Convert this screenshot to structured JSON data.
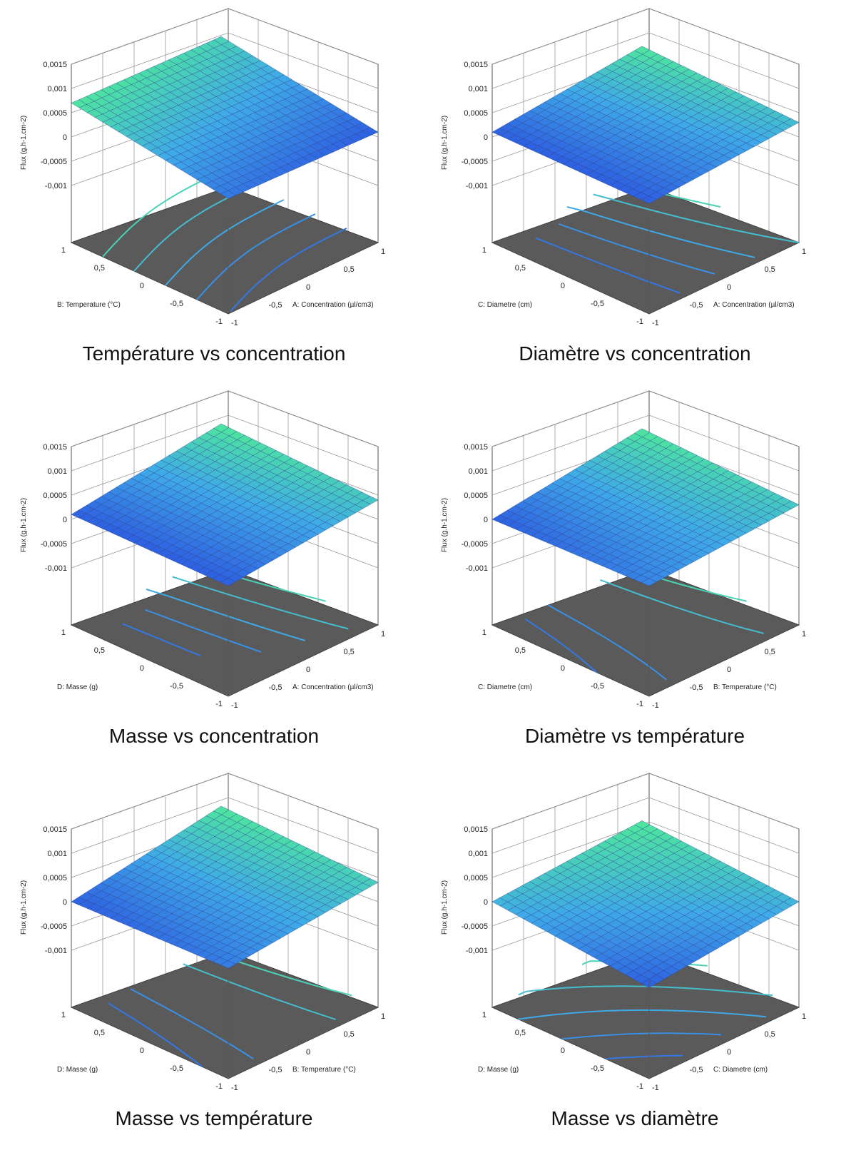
{
  "figure": {
    "z_axis_label": "Flux (g.h-1.cm-2)",
    "z_ticks": [
      "0,0015",
      "0,001",
      "0,0005",
      "0",
      "-0,0005",
      "-0,001"
    ],
    "z_tick_values": [
      0.0015,
      0.001,
      0.0005,
      0,
      -0.0005,
      -0.001
    ],
    "xy_ticks": [
      "-1",
      "-0,5",
      "0",
      "0,5",
      "1"
    ],
    "colors": {
      "floor": "#5a5a5a",
      "surface_low": "#2e5fe0",
      "surface_mid": "#3fa9e8",
      "surface_high": "#4ee69c"
    }
  },
  "panels": [
    {
      "caption": "Température vs concentration",
      "right_axis_label": "A: Concentration (µl/cm3)",
      "left_axis_label": "B: Temperature (°C)",
      "left_ticks": [
        "1",
        "0,5",
        "0",
        "-0,5",
        "-1"
      ],
      "right_ticks": [
        "-1",
        "-0,5",
        "0",
        "0,5",
        "1"
      ]
    },
    {
      "caption": "Diamètre vs concentration",
      "right_axis_label": "A: Concentration (µl/cm3)",
      "left_axis_label": "C: Diametre (cm)",
      "left_ticks": [
        "1",
        "0,5",
        "0",
        "-0,5",
        "-1"
      ],
      "right_ticks": [
        "-1",
        "-0,5",
        "0",
        "0,5",
        "1"
      ]
    },
    {
      "caption": "Masse vs concentration",
      "right_axis_label": "A: Concentration (µl/cm3)",
      "left_axis_label": "D: Masse (g)",
      "left_ticks": [
        "1",
        "0,5",
        "0",
        "-0,5",
        "-1"
      ],
      "right_ticks": [
        "-1",
        "-0,5",
        "0",
        "0,5",
        "1"
      ]
    },
    {
      "caption": "Diamètre vs température",
      "right_axis_label": "B: Temperature (°C)",
      "left_axis_label": "C: Diametre (cm)",
      "left_ticks": [
        "1",
        "0,5",
        "0",
        "-0,5",
        "-1"
      ],
      "right_ticks": [
        "-1",
        "-0,5",
        "0",
        "0,5",
        "1"
      ]
    },
    {
      "caption": "Masse vs température",
      "right_axis_label": "B: Temperature (°C)",
      "left_axis_label": "D: Masse (g)",
      "left_ticks": [
        "1",
        "0,5",
        "0",
        "-0,5",
        "-1"
      ],
      "right_ticks": [
        "-1",
        "-0,5",
        "0",
        "0,5",
        "1"
      ]
    },
    {
      "caption": "Masse vs diamètre",
      "right_axis_label": "C: Diametre (cm)",
      "left_axis_label": "D: Masse (g)",
      "left_ticks": [
        "1",
        "0,5",
        "0",
        "-0,5",
        "-1"
      ],
      "right_ticks": [
        "-1",
        "-0,5",
        "0",
        "0,5",
        "1"
      ]
    }
  ],
  "chart_data": [
    {
      "type": "surface3d",
      "title": "",
      "zlabel": "Flux (g.h-1.cm-2)",
      "xlabel": "A: Concentration (µl/cm3)",
      "ylabel": "B: Temperature (°C)",
      "xlim": [
        -1,
        1
      ],
      "ylim": [
        -1,
        1
      ],
      "zlim": [
        -0.001,
        0.0015
      ],
      "corner_z": {
        "x-1_y-1": 0.0002,
        "x1_y-1": 0.0001,
        "x1_y1": 0.0006,
        "x-1_y1": 0.0007
      }
    },
    {
      "type": "surface3d",
      "title": "",
      "zlabel": "Flux (g.h-1.cm-2)",
      "xlabel": "A: Concentration (µl/cm3)",
      "ylabel": "C: Diametre (cm)",
      "xlim": [
        -1,
        1
      ],
      "ylim": [
        -1,
        1
      ],
      "zlim": [
        -0.001,
        0.0015
      ],
      "corner_z": {
        "x-1_y-1": 0.0001,
        "x1_y-1": 0.0003,
        "x1_y1": 0.0004,
        "x-1_y1": 0.0001
      }
    },
    {
      "type": "surface3d",
      "title": "",
      "zlabel": "Flux (g.h-1.cm-2)",
      "xlabel": "A: Concentration (µl/cm3)",
      "ylabel": "D: Masse (g)",
      "xlim": [
        -1,
        1
      ],
      "ylim": [
        -1,
        1
      ],
      "zlim": [
        -0.001,
        0.0015
      ],
      "corner_z": {
        "x-1_y-1": 0.0001,
        "x1_y-1": 0.0004,
        "x1_y1": 0.0005,
        "x-1_y1": 0.0001
      }
    },
    {
      "type": "surface3d",
      "title": "",
      "zlabel": "Flux (g.h-1.cm-2)",
      "xlabel": "B: Temperature (°C)",
      "ylabel": "C: Diametre (cm)",
      "xlim": [
        -1,
        1
      ],
      "ylim": [
        -1,
        1
      ],
      "zlim": [
        -0.001,
        0.0015
      ],
      "corner_z": {
        "x-1_y-1": 0.0001,
        "x1_y-1": 0.0003,
        "x1_y1": 0.0004,
        "x-1_y1": 0.0
      }
    },
    {
      "type": "surface3d",
      "title": "",
      "zlabel": "Flux (g.h-1.cm-2)",
      "xlabel": "B: Temperature (°C)",
      "ylabel": "D: Masse (g)",
      "xlim": [
        -1,
        1
      ],
      "ylim": [
        -1,
        1
      ],
      "zlim": [
        -0.001,
        0.0015
      ],
      "corner_z": {
        "x-1_y-1": 0.0001,
        "x1_y-1": 0.0004,
        "x1_y1": 0.0005,
        "x-1_y1": 0.0
      }
    },
    {
      "type": "surface3d",
      "title": "",
      "zlabel": "Flux (g.h-1.cm-2)",
      "xlabel": "C: Diametre (cm)",
      "ylabel": "D: Masse (g)",
      "xlim": [
        -1,
        1
      ],
      "ylim": [
        -1,
        1
      ],
      "zlim": [
        -0.001,
        0.0015
      ],
      "corner_z": {
        "x-1_y-1": -0.0003,
        "x1_y-1": 0.0,
        "x1_y1": 0.0002,
        "x-1_y1": 0.0
      }
    }
  ]
}
